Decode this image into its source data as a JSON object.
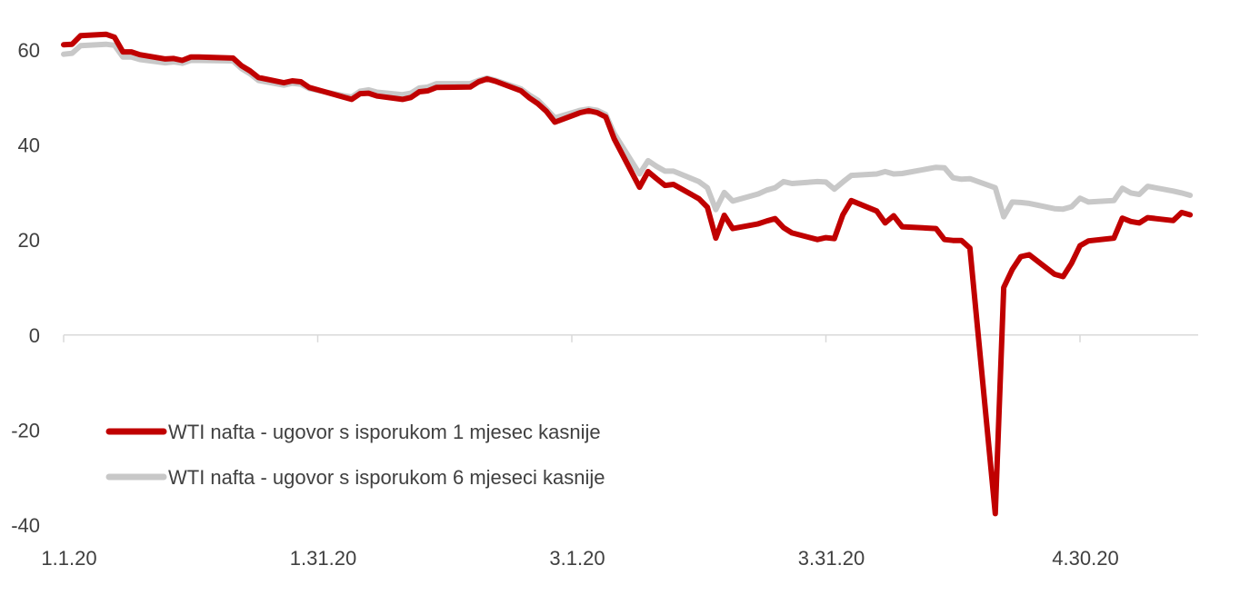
{
  "colors": {
    "series_1": "#c00000",
    "series_2": "#c8c8c8",
    "axis": "#d9d9d9",
    "text": "#404040"
  },
  "chart_data": {
    "type": "line",
    "title": "",
    "xlabel": "",
    "ylabel": "",
    "ylim": [
      -40,
      60
    ],
    "y_ticks": [
      "60",
      "40",
      "20",
      "0",
      "-20",
      "-40"
    ],
    "y_tick_values": [
      60,
      40,
      20,
      0,
      -20,
      -40
    ],
    "x_ticks": [
      "1.1.20",
      "1.31.20",
      "3.1.20",
      "3.31.20",
      "4.30.20"
    ],
    "x_tick_dates": [
      "2020-01-01",
      "2020-01-31",
      "2020-03-01",
      "2020-03-31",
      "2020-04-30"
    ],
    "x_range": [
      "2020-01-01",
      "2020-05-15"
    ],
    "grid": false,
    "legend_position": "bottom-left",
    "series": [
      {
        "name": "WTI nafta - ugovor s isporukom 1 mjesec kasnije",
        "color": "#c00000",
        "points": [
          [
            "2020-01-01",
            61.1
          ],
          [
            "2020-01-02",
            61.2
          ],
          [
            "2020-01-03",
            63.0
          ],
          [
            "2020-01-06",
            63.3
          ],
          [
            "2020-01-07",
            62.7
          ],
          [
            "2020-01-08",
            59.6
          ],
          [
            "2020-01-09",
            59.6
          ],
          [
            "2020-01-10",
            59.0
          ],
          [
            "2020-01-13",
            58.1
          ],
          [
            "2020-01-14",
            58.2
          ],
          [
            "2020-01-15",
            57.8
          ],
          [
            "2020-01-16",
            58.5
          ],
          [
            "2020-01-17",
            58.5
          ],
          [
            "2020-01-21",
            58.3
          ],
          [
            "2020-01-22",
            56.7
          ],
          [
            "2020-01-23",
            55.6
          ],
          [
            "2020-01-24",
            54.2
          ],
          [
            "2020-01-27",
            53.1
          ],
          [
            "2020-01-28",
            53.5
          ],
          [
            "2020-01-29",
            53.3
          ],
          [
            "2020-01-30",
            52.1
          ],
          [
            "2020-01-31",
            51.6
          ],
          [
            "2020-02-03",
            50.1
          ],
          [
            "2020-02-04",
            49.6
          ],
          [
            "2020-02-05",
            50.8
          ],
          [
            "2020-02-06",
            50.9
          ],
          [
            "2020-02-07",
            50.3
          ],
          [
            "2020-02-10",
            49.6
          ],
          [
            "2020-02-11",
            50.0
          ],
          [
            "2020-02-12",
            51.2
          ],
          [
            "2020-02-13",
            51.4
          ],
          [
            "2020-02-14",
            52.1
          ],
          [
            "2020-02-18",
            52.2
          ],
          [
            "2020-02-19",
            53.3
          ],
          [
            "2020-02-20",
            53.9
          ],
          [
            "2020-02-21",
            53.4
          ],
          [
            "2020-02-24",
            51.4
          ],
          [
            "2020-02-25",
            49.9
          ],
          [
            "2020-02-26",
            48.7
          ],
          [
            "2020-02-27",
            47.1
          ],
          [
            "2020-02-28",
            44.8
          ],
          [
            "2020-03-02",
            46.8
          ],
          [
            "2020-03-03",
            47.2
          ],
          [
            "2020-03-04",
            46.8
          ],
          [
            "2020-03-05",
            45.9
          ],
          [
            "2020-03-06",
            41.3
          ],
          [
            "2020-03-09",
            31.1
          ],
          [
            "2020-03-10",
            34.4
          ],
          [
            "2020-03-11",
            32.9
          ],
          [
            "2020-03-12",
            31.5
          ],
          [
            "2020-03-13",
            31.7
          ],
          [
            "2020-03-16",
            28.7
          ],
          [
            "2020-03-17",
            26.9
          ],
          [
            "2020-03-18",
            20.4
          ],
          [
            "2020-03-19",
            25.2
          ],
          [
            "2020-03-20",
            22.4
          ],
          [
            "2020-03-23",
            23.4
          ],
          [
            "2020-03-24",
            24.0
          ],
          [
            "2020-03-25",
            24.5
          ],
          [
            "2020-03-26",
            22.6
          ],
          [
            "2020-03-27",
            21.5
          ],
          [
            "2020-03-30",
            20.1
          ],
          [
            "2020-03-31",
            20.5
          ],
          [
            "2020-04-01",
            20.3
          ],
          [
            "2020-04-02",
            25.3
          ],
          [
            "2020-04-03",
            28.3
          ],
          [
            "2020-04-06",
            26.1
          ],
          [
            "2020-04-07",
            23.6
          ],
          [
            "2020-04-08",
            25.1
          ],
          [
            "2020-04-09",
            22.8
          ],
          [
            "2020-04-13",
            22.4
          ],
          [
            "2020-04-14",
            20.1
          ],
          [
            "2020-04-15",
            19.9
          ],
          [
            "2020-04-16",
            19.9
          ],
          [
            "2020-04-17",
            18.3
          ],
          [
            "2020-04-20",
            -37.6
          ],
          [
            "2020-04-21",
            10.0
          ],
          [
            "2020-04-22",
            13.8
          ],
          [
            "2020-04-23",
            16.5
          ],
          [
            "2020-04-24",
            16.9
          ],
          [
            "2020-04-27",
            12.8
          ],
          [
            "2020-04-28",
            12.3
          ],
          [
            "2020-04-29",
            15.1
          ],
          [
            "2020-04-30",
            18.8
          ],
          [
            "2020-05-01",
            19.8
          ],
          [
            "2020-05-04",
            20.4
          ],
          [
            "2020-05-05",
            24.6
          ],
          [
            "2020-05-06",
            23.9
          ],
          [
            "2020-05-07",
            23.6
          ],
          [
            "2020-05-08",
            24.7
          ],
          [
            "2020-05-11",
            24.1
          ],
          [
            "2020-05-12",
            25.8
          ],
          [
            "2020-05-13",
            25.3
          ]
        ]
      },
      {
        "name": "WTI nafta - ugovor s isporukom 6 mjeseci kasnije",
        "color": "#c8c8c8",
        "points": [
          [
            "2020-01-01",
            59.1
          ],
          [
            "2020-01-02",
            59.3
          ],
          [
            "2020-01-03",
            60.9
          ],
          [
            "2020-01-06",
            61.2
          ],
          [
            "2020-01-07",
            61.0
          ],
          [
            "2020-01-08",
            58.5
          ],
          [
            "2020-01-09",
            58.5
          ],
          [
            "2020-01-10",
            58.0
          ],
          [
            "2020-01-13",
            57.3
          ],
          [
            "2020-01-14",
            57.5
          ],
          [
            "2020-01-15",
            57.2
          ],
          [
            "2020-01-16",
            57.8
          ],
          [
            "2020-01-17",
            57.8
          ],
          [
            "2020-01-21",
            57.7
          ],
          [
            "2020-01-22",
            56.1
          ],
          [
            "2020-01-23",
            55.0
          ],
          [
            "2020-01-24",
            53.6
          ],
          [
            "2020-01-27",
            52.6
          ],
          [
            "2020-01-28",
            53.0
          ],
          [
            "2020-01-29",
            52.8
          ],
          [
            "2020-01-30",
            51.9
          ],
          [
            "2020-01-31",
            51.5
          ],
          [
            "2020-02-03",
            50.4
          ],
          [
            "2020-02-04",
            50.1
          ],
          [
            "2020-02-05",
            51.3
          ],
          [
            "2020-02-06",
            51.6
          ],
          [
            "2020-02-07",
            51.1
          ],
          [
            "2020-02-10",
            50.6
          ],
          [
            "2020-02-11",
            50.9
          ],
          [
            "2020-02-12",
            52.0
          ],
          [
            "2020-02-13",
            52.2
          ],
          [
            "2020-02-14",
            52.9
          ],
          [
            "2020-02-18",
            52.9
          ],
          [
            "2020-02-19",
            53.6
          ],
          [
            "2020-02-20",
            54.1
          ],
          [
            "2020-02-21",
            53.6
          ],
          [
            "2020-02-24",
            51.8
          ],
          [
            "2020-02-25",
            50.5
          ],
          [
            "2020-02-26",
            49.4
          ],
          [
            "2020-02-27",
            47.6
          ],
          [
            "2020-02-28",
            45.7
          ],
          [
            "2020-03-02",
            47.3
          ],
          [
            "2020-03-03",
            47.6
          ],
          [
            "2020-03-04",
            47.3
          ],
          [
            "2020-03-05",
            46.4
          ],
          [
            "2020-03-06",
            42.4
          ],
          [
            "2020-03-09",
            33.9
          ],
          [
            "2020-03-10",
            36.7
          ],
          [
            "2020-03-11",
            35.5
          ],
          [
            "2020-03-12",
            34.5
          ],
          [
            "2020-03-13",
            34.5
          ],
          [
            "2020-03-16",
            32.3
          ],
          [
            "2020-03-17",
            31.0
          ],
          [
            "2020-03-18",
            26.4
          ],
          [
            "2020-03-19",
            30.0
          ],
          [
            "2020-03-20",
            28.2
          ],
          [
            "2020-03-23",
            29.7
          ],
          [
            "2020-03-24",
            30.5
          ],
          [
            "2020-03-25",
            31.0
          ],
          [
            "2020-03-26",
            32.3
          ],
          [
            "2020-03-27",
            31.9
          ],
          [
            "2020-03-30",
            32.3
          ],
          [
            "2020-03-31",
            32.2
          ],
          [
            "2020-04-01",
            30.7
          ],
          [
            "2020-04-02",
            32.2
          ],
          [
            "2020-04-03",
            33.6
          ],
          [
            "2020-04-06",
            33.9
          ],
          [
            "2020-04-07",
            34.4
          ],
          [
            "2020-04-08",
            33.9
          ],
          [
            "2020-04-09",
            34.0
          ],
          [
            "2020-04-13",
            35.3
          ],
          [
            "2020-04-14",
            35.2
          ],
          [
            "2020-04-15",
            33.1
          ],
          [
            "2020-04-16",
            32.8
          ],
          [
            "2020-04-17",
            32.9
          ],
          [
            "2020-04-20",
            31.0
          ],
          [
            "2020-04-21",
            24.9
          ],
          [
            "2020-04-22",
            28.0
          ],
          [
            "2020-04-23",
            27.9
          ],
          [
            "2020-04-24",
            27.7
          ],
          [
            "2020-04-27",
            26.6
          ],
          [
            "2020-04-28",
            26.5
          ],
          [
            "2020-04-29",
            27.0
          ],
          [
            "2020-04-30",
            28.8
          ],
          [
            "2020-05-01",
            28.0
          ],
          [
            "2020-05-04",
            28.3
          ],
          [
            "2020-05-05",
            30.9
          ],
          [
            "2020-05-06",
            29.9
          ],
          [
            "2020-05-07",
            29.6
          ],
          [
            "2020-05-08",
            31.3
          ],
          [
            "2020-05-11",
            30.3
          ],
          [
            "2020-05-12",
            29.9
          ],
          [
            "2020-05-13",
            29.4
          ]
        ]
      }
    ]
  }
}
